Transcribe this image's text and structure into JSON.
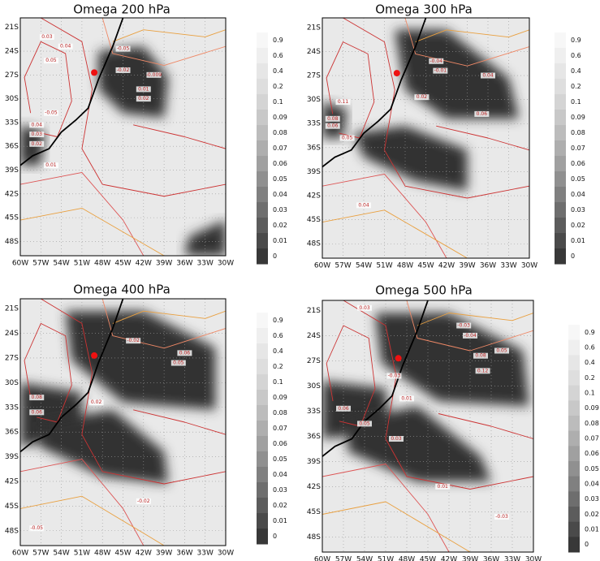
{
  "panels": [
    {
      "title": "Omega 200 hPa",
      "contour_labels": [
        "0.03",
        "0.04",
        "0.05",
        "-0.05",
        "0.04",
        "0.03",
        "0.02",
        "0.01",
        "-0.05",
        "-0.02",
        "-0.009",
        "0.01",
        "0.02"
      ]
    },
    {
      "title": "Omega 300 hPa",
      "contour_labels": [
        "-0.04",
        "-0.01",
        "0.04",
        "0.02",
        "0.11",
        "0.08",
        "0.06",
        "0.05",
        "0.06",
        "0.04"
      ]
    },
    {
      "title": "Omega 400 hPa",
      "contour_labels": [
        "-0.02",
        "0.06",
        "0.05",
        "0.02",
        "0.08",
        "0.06",
        "-0.02",
        "-0.05"
      ]
    },
    {
      "title": "Omega 500 hPa",
      "contour_labels": [
        "0.03",
        "-0.04",
        "-0.03",
        "0.08",
        "0.05",
        "0.12",
        "-0.03",
        "0.01",
        "0.06",
        "0.05",
        "0.03",
        "0.01",
        "-0.03"
      ]
    }
  ],
  "lat_labels": [
    "21S",
    "24S",
    "27S",
    "30S",
    "33S",
    "36S",
    "39S",
    "42S",
    "45S",
    "48S"
  ],
  "lon_labels": [
    "60W",
    "57W",
    "54W",
    "51W",
    "48W",
    "45W",
    "42W",
    "39W",
    "36W",
    "33W",
    "30W"
  ],
  "colorbar_labels": [
    "0.9",
    "0.6",
    "0.4",
    "0.2",
    "0.1",
    "0.09",
    "0.08",
    "0.07",
    "0.06",
    "0.05",
    "0.04",
    "0.03",
    "0.02",
    "0.01",
    "0"
  ]
}
